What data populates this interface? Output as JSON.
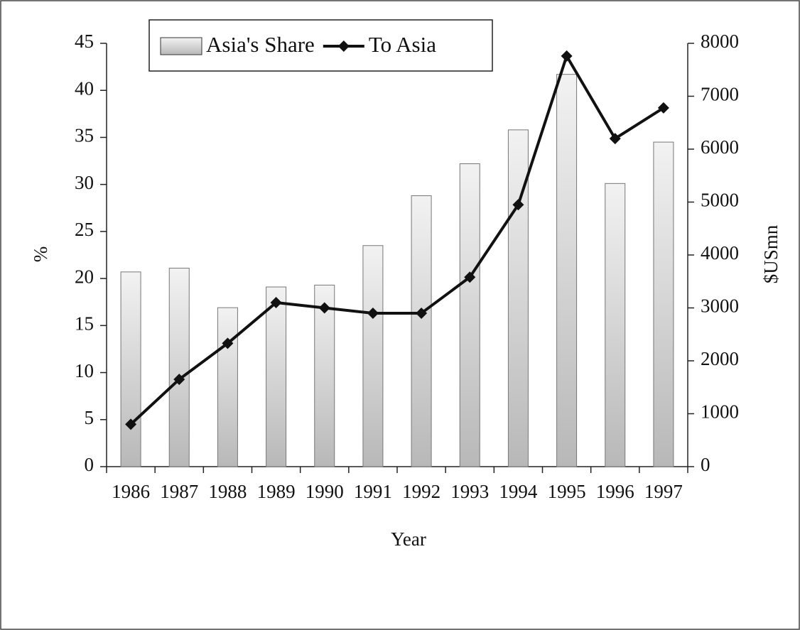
{
  "chart_data": {
    "type": "bar-line",
    "categories": [
      "1986",
      "1987",
      "1988",
      "1989",
      "1990",
      "1991",
      "1992",
      "1993",
      "1994",
      "1995",
      "1996",
      "1997"
    ],
    "x_label": "Year",
    "y_label": "%",
    "y2_label": "$USmn",
    "series": [
      {
        "name": "Asia's Share",
        "type": "bar",
        "color": "#d4d4d4",
        "values": [
          20.7,
          21.1,
          16.9,
          19.1,
          19.3,
          23.5,
          28.8,
          32.2,
          35.8,
          41.7,
          30.1,
          34.5
        ]
      },
      {
        "name": "To Asia",
        "type": "line",
        "axis": "y2",
        "color": "#111111",
        "values": [
          800,
          1650,
          2330,
          3100,
          3000,
          2900,
          2900,
          3580,
          4950,
          7760,
          6200,
          6780
        ]
      }
    ],
    "ylim": [
      0,
      45
    ],
    "yticks": [
      0,
      5,
      10,
      15,
      20,
      25,
      30,
      35,
      40,
      45
    ],
    "y2lim": [
      0,
      8000
    ],
    "y2ticks": [
      0,
      1000,
      2000,
      3000,
      4000,
      5000,
      6000,
      7000,
      8000
    ],
    "legend": "top"
  }
}
